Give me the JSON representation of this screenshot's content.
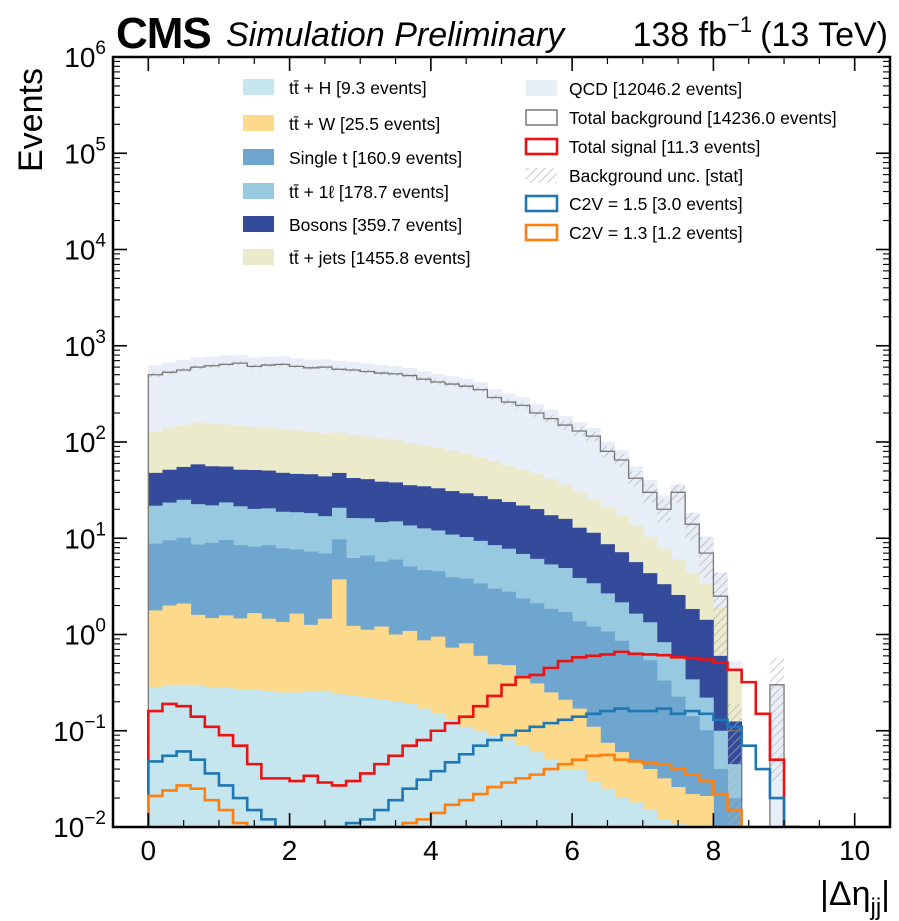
{
  "header": {
    "experiment": "CMS",
    "tag": "Simulation Preliminary",
    "lumi_value": "138 fb",
    "lumi_exp": "−1",
    "energy": "(13 TeV)"
  },
  "chart_data": {
    "type": "histogram",
    "ylabel": "Events",
    "xlabel": "|Δη",
    "xlabel_sub": "jj",
    "xlabel_close": "|",
    "y_scale": "log",
    "xlim": [
      -0.5,
      10.5
    ],
    "ylim": [
      0.01,
      1000000
    ],
    "x_ticks": [
      0,
      2,
      4,
      6,
      8,
      10
    ],
    "x_tick_labels": [
      "0",
      "2",
      "4",
      "6",
      "8",
      "10"
    ],
    "y_ticks": [
      0.01,
      0.1,
      1,
      10,
      100,
      1000,
      10000,
      100000,
      1000000
    ],
    "y_tick_base": "10",
    "y_tick_exps": [
      "−2",
      "−1",
      "0",
      "1",
      "2",
      "3",
      "4",
      "5",
      "6"
    ],
    "bin_edges_start": 0,
    "bin_width": 0.2,
    "bin_count": 46,
    "grid": false,
    "legend_placement": "top",
    "stack": [
      {
        "name": "tt̄ + H [9.3 events]",
        "color": "#c5e5ef",
        "values": [
          0.28,
          0.3,
          0.3,
          0.3,
          0.28,
          0.28,
          0.27,
          0.27,
          0.26,
          0.25,
          0.25,
          0.26,
          0.26,
          0.24,
          0.23,
          0.22,
          0.21,
          0.2,
          0.19,
          0.17,
          0.15,
          0.13,
          0.11,
          0.1,
          0.09,
          0.08,
          0.07,
          0.06,
          0.05,
          0.04,
          0.04,
          0.03,
          0.025,
          0.02,
          0.018,
          0.015,
          0.012,
          0.011,
          0.01,
          0.01,
          0,
          0,
          0,
          0,
          0,
          0
        ]
      },
      {
        "name": "tt̄ + W [25.5 events]",
        "color": "#fdd98b",
        "values": [
          1.5,
          1.7,
          1.8,
          1.3,
          1.2,
          1.3,
          1.2,
          1.4,
          1.2,
          1.1,
          1.4,
          1.0,
          1.2,
          3.5,
          1.0,
          0.9,
          1.0,
          0.8,
          0.9,
          0.7,
          0.8,
          0.6,
          0.7,
          0.5,
          0.4,
          0.4,
          0.3,
          0.25,
          0.2,
          0.17,
          0.13,
          0.08,
          0.05,
          0.04,
          0.03,
          0.025,
          0.02,
          0.015,
          0.012,
          0.011,
          0,
          0,
          0,
          0,
          0,
          0
        ]
      },
      {
        "name": "Single t [160.9 events]",
        "color": "#6fa6cf",
        "values": [
          7,
          7.5,
          8,
          7,
          7.5,
          8,
          7,
          6.5,
          7,
          6.5,
          6,
          6,
          5.5,
          6,
          5,
          5.5,
          4.5,
          5,
          4,
          3.8,
          3.6,
          3.2,
          3,
          2.8,
          2.5,
          2.3,
          2,
          1.8,
          1.6,
          1.5,
          1.2,
          1.1,
          1.0,
          0.8,
          0.6,
          0.5,
          0.3,
          0.2,
          0.12,
          0.08,
          0.04,
          0.02,
          0,
          0,
          0,
          0
        ]
      },
      {
        "name": "tt̄ + 1ℓ [178.7 events]",
        "color": "#97c9e0",
        "values": [
          13,
          14,
          15,
          14,
          13,
          14,
          13,
          12,
          12,
          11,
          11,
          11,
          10,
          11,
          10,
          9.5,
          9,
          9,
          8.5,
          8,
          7.5,
          7,
          6.5,
          6,
          5.5,
          5,
          4.5,
          4,
          3.5,
          3.2,
          2.5,
          2.2,
          1.6,
          1.3,
          1.0,
          0.8,
          0.5,
          0.35,
          0.2,
          0.12,
          0.06,
          0.025,
          0,
          0,
          0,
          0
        ]
      },
      {
        "name": "Bosons [359.7 events]",
        "color": "#344a9a",
        "values": [
          26,
          28,
          30,
          36,
          34,
          32,
          30,
          31,
          30,
          29,
          28,
          28,
          27,
          27,
          26,
          25,
          24,
          23,
          22,
          22,
          21,
          20,
          19,
          18,
          17,
          16,
          15,
          14,
          12,
          11,
          9,
          8,
          6,
          5,
          4,
          3,
          2.5,
          2,
          1.5,
          1.2,
          0.5,
          0.08,
          0,
          0,
          0,
          0
        ]
      },
      {
        "name": "tt̄ + jets [1455.8 events]",
        "color": "#ebebcb",
        "values": [
          80,
          90,
          95,
          100,
          98,
          96,
          95,
          92,
          90,
          88,
          85,
          82,
          80,
          78,
          76,
          72,
          70,
          66,
          62,
          58,
          55,
          50,
          46,
          42,
          38,
          34,
          30,
          27,
          24,
          20,
          17,
          14,
          12,
          10,
          8,
          6,
          4.5,
          3.5,
          2.5,
          2,
          1.3,
          0.3,
          0,
          0,
          0,
          0
        ]
      },
      {
        "name": "QCD [12046.2 events]",
        "color": "#e8eef7",
        "values": [
          500,
          530,
          560,
          600,
          620,
          640,
          660,
          610,
          630,
          640,
          610,
          590,
          600,
          570,
          560,
          540,
          520,
          510,
          490,
          450,
          420,
          400,
          380,
          350,
          290,
          260,
          240,
          200,
          175,
          150,
          130,
          115,
          80,
          65,
          42,
          30,
          20,
          30,
          14,
          7,
          2.5,
          0.1,
          0,
          0,
          0.3,
          0
        ]
      }
    ],
    "total_background": {
      "name": "Total background [14236.0 events]",
      "color": "#777777",
      "values": [
        500,
        530,
        560,
        600,
        620,
        640,
        660,
        610,
        630,
        640,
        610,
        590,
        600,
        570,
        560,
        540,
        520,
        510,
        490,
        450,
        420,
        400,
        380,
        350,
        290,
        260,
        240,
        200,
        175,
        150,
        130,
        115,
        80,
        65,
        42,
        30,
        20,
        30,
        14,
        7,
        2.5,
        0.1,
        0,
        0,
        0.3,
        0
      ]
    },
    "bkg_unc": {
      "name": "Background unc. [stat]",
      "color": "#b0b0b0"
    },
    "signals": [
      {
        "name": "Total signal [11.3 events]",
        "color": "#ee1111",
        "values": [
          0.16,
          0.19,
          0.18,
          0.14,
          0.11,
          0.09,
          0.07,
          0.045,
          0.032,
          0.032,
          0.03,
          0.034,
          0.029,
          0.027,
          0.03,
          0.036,
          0.045,
          0.055,
          0.07,
          0.08,
          0.1,
          0.12,
          0.14,
          0.18,
          0.23,
          0.3,
          0.36,
          0.38,
          0.45,
          0.53,
          0.58,
          0.6,
          0.62,
          0.66,
          0.63,
          0.62,
          0.61,
          0.58,
          0.57,
          0.55,
          0.51,
          0.43,
          0.32,
          0.15,
          0.05,
          0.01
        ]
      },
      {
        "name": "C2V = 1.5 [3.0 events]",
        "color": "#1f77b4",
        "values": [
          0.048,
          0.055,
          0.061,
          0.05,
          0.036,
          0.027,
          0.02,
          0.015,
          0.012,
          0.01,
          0.01,
          0.01,
          0.01,
          0.01,
          0.011,
          0.012,
          0.015,
          0.019,
          0.025,
          0.031,
          0.038,
          0.047,
          0.057,
          0.07,
          0.08,
          0.09,
          0.1,
          0.11,
          0.12,
          0.13,
          0.14,
          0.15,
          0.16,
          0.17,
          0.16,
          0.16,
          0.17,
          0.15,
          0.16,
          0.15,
          0.13,
          0.11,
          0.07,
          0.04,
          0.02,
          0.01
        ]
      },
      {
        "name": "C2V = 1.3 [1.2 events]",
        "color": "#ff7f0e",
        "values": [
          0.021,
          0.024,
          0.027,
          0.025,
          0.019,
          0.015,
          0.011,
          0.01,
          0.01,
          0.01,
          0.01,
          0.01,
          0.01,
          0.01,
          0.01,
          0.01,
          0.01,
          0.01,
          0.011,
          0.012,
          0.014,
          0.017,
          0.019,
          0.022,
          0.026,
          0.029,
          0.032,
          0.035,
          0.04,
          0.045,
          0.05,
          0.055,
          0.056,
          0.05,
          0.048,
          0.046,
          0.045,
          0.04,
          0.035,
          0.03,
          0.022,
          0.015,
          0.01,
          0.01,
          0,
          0
        ]
      }
    ]
  }
}
